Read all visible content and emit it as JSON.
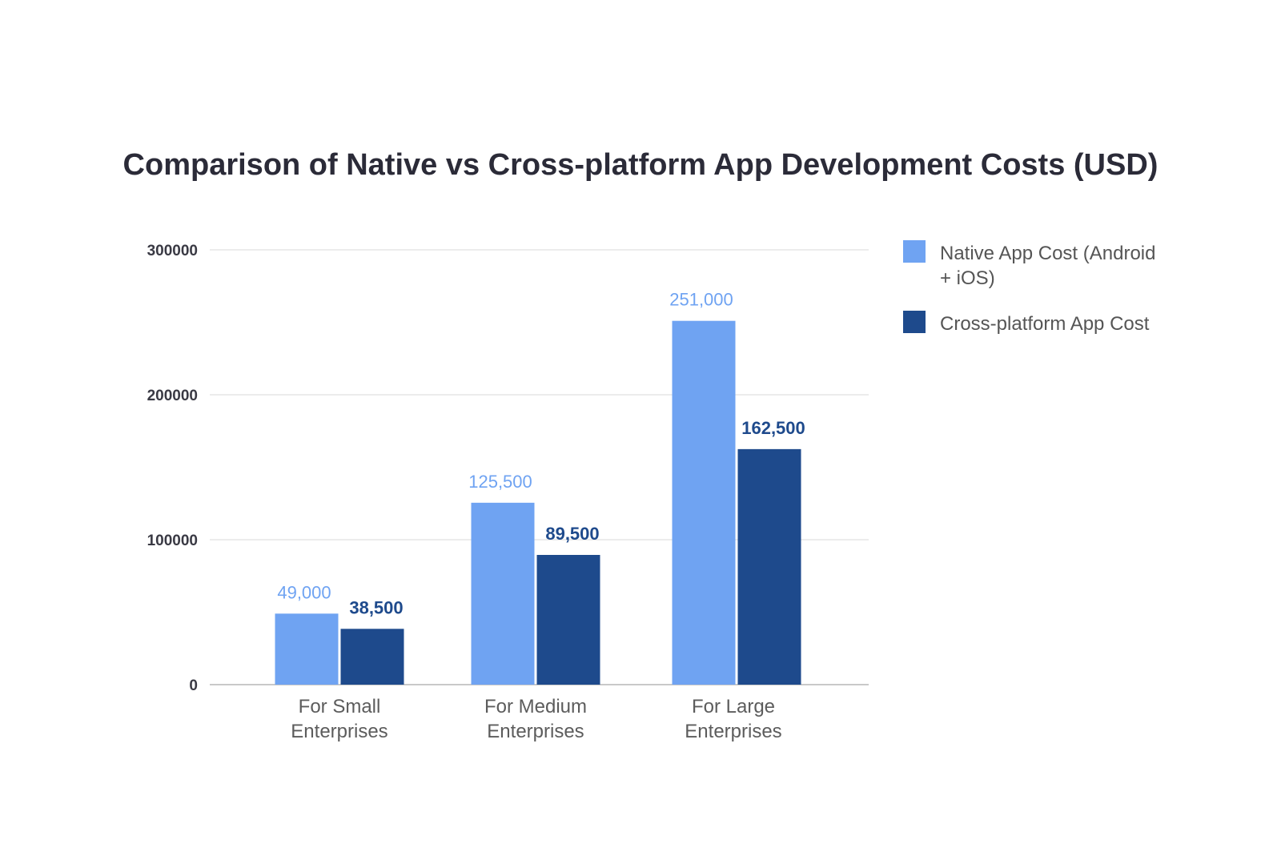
{
  "chart_data": {
    "type": "bar",
    "title": "Comparison of Native vs Cross-platform App Development Costs (USD)",
    "xlabel": "",
    "ylabel": "",
    "ylim": [
      0,
      300000
    ],
    "yticks": [
      "0",
      "100000",
      "200000",
      "300000"
    ],
    "categories": [
      [
        "For Small",
        "Enterprises"
      ],
      [
        "For Medium",
        "Enterprises"
      ],
      [
        "For Large",
        "Enterprises"
      ]
    ],
    "series": [
      {
        "name": "Native App Cost (Android + iOS)",
        "legend_lines": [
          "Native App Cost (Android",
          "+ iOS)"
        ],
        "color": "#6fa3f2",
        "label_color": "#6fa3f2",
        "values": [
          49000,
          125500,
          251000
        ],
        "labels": [
          "49,000",
          "125,500",
          "251,000"
        ]
      },
      {
        "name": "Cross-platform App Cost",
        "legend_lines": [
          "Cross-platform App Cost"
        ],
        "color": "#1e4a8c",
        "label_color": "#1e4a8c",
        "values": [
          38500,
          89500,
          162500
        ],
        "labels": [
          "38,500",
          "89,500",
          "162,500"
        ]
      }
    ],
    "grid": true,
    "legend": "right"
  }
}
